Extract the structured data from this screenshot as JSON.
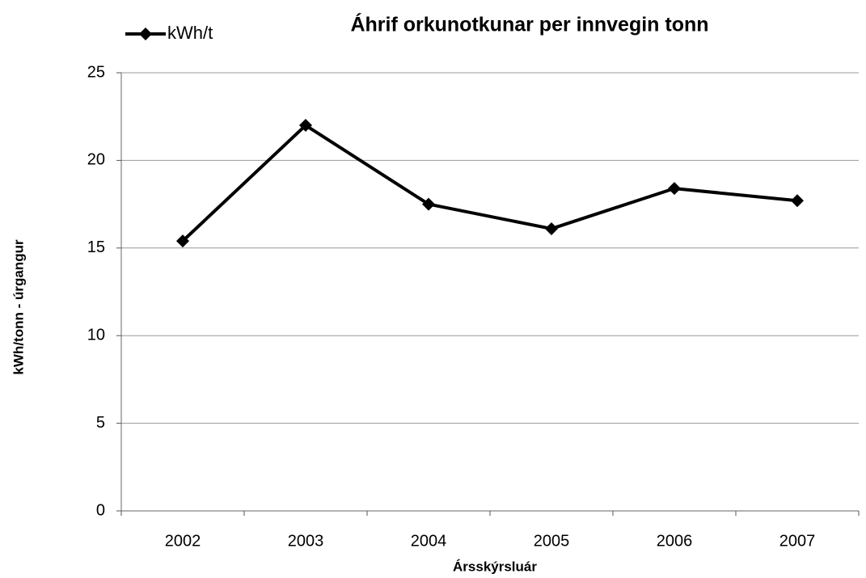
{
  "chart_data": {
    "type": "line",
    "title": "Áhrif orkunotkunar per innvegin tonn",
    "x_label": "Ársskýrsluár",
    "y_label": "kWh/tonn - úrgangur",
    "categories": [
      "2002",
      "2003",
      "2004",
      "2005",
      "2006",
      "2007"
    ],
    "series": [
      {
        "name": "kWh/t",
        "color": "#000000",
        "values": [
          15.4,
          22,
          17.5,
          16.1,
          18.4,
          17.7
        ]
      }
    ],
    "ylim": [
      0,
      25
    ],
    "yticks": [
      0,
      5,
      10,
      15,
      20,
      25
    ],
    "grid": true,
    "legend": "top-left"
  }
}
